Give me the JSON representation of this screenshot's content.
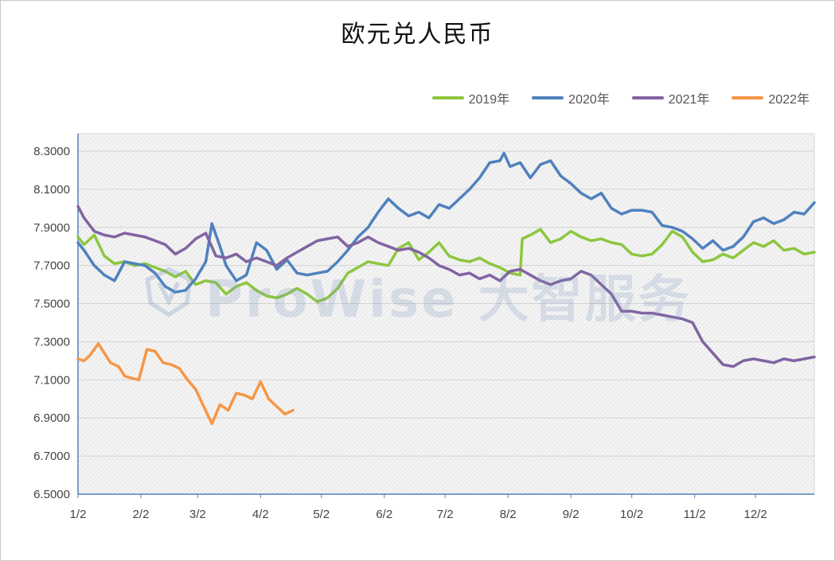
{
  "chart_data": {
    "type": "line",
    "title": "欧元兑人民币",
    "xlabel": "",
    "ylabel": "",
    "ylim": [
      6.5,
      8.3
    ],
    "yticks": [
      "8.3000",
      "8.1000",
      "7.9000",
      "7.7000",
      "7.5000",
      "7.3000",
      "7.1000",
      "6.9000",
      "6.7000",
      "6.5000"
    ],
    "xticks": [
      "1/2",
      "2/2",
      "3/2",
      "4/2",
      "5/2",
      "6/2",
      "7/2",
      "8/2",
      "9/2",
      "10/2",
      "11/2",
      "12/2"
    ],
    "legend_position": "top-right",
    "grid": true,
    "x_unit": "day-of-year",
    "series": [
      {
        "name": "2019年",
        "color": "#8dc63f",
        "x": [
          2,
          5,
          10,
          15,
          20,
          25,
          30,
          35,
          40,
          45,
          50,
          55,
          60,
          65,
          70,
          75,
          80,
          85,
          90,
          95,
          100,
          105,
          110,
          115,
          120,
          125,
          130,
          135,
          140,
          145,
          150,
          155,
          160,
          165,
          170,
          175,
          180,
          185,
          190,
          195,
          200,
          205,
          210,
          215,
          220,
          221,
          225,
          230,
          235,
          240,
          245,
          250,
          255,
          260,
          265,
          270,
          275,
          280,
          285,
          290,
          295,
          300,
          305,
          310,
          315,
          320,
          325,
          330,
          335,
          340,
          345,
          350,
          355,
          360,
          365
        ],
        "values": [
          7.85,
          7.81,
          7.86,
          7.75,
          7.71,
          7.72,
          7.7,
          7.71,
          7.69,
          7.67,
          7.64,
          7.67,
          7.6,
          7.62,
          7.61,
          7.55,
          7.59,
          7.61,
          7.57,
          7.54,
          7.53,
          7.55,
          7.58,
          7.55,
          7.51,
          7.53,
          7.58,
          7.66,
          7.69,
          7.72,
          7.71,
          7.7,
          7.79,
          7.82,
          7.73,
          7.77,
          7.82,
          7.75,
          7.73,
          7.72,
          7.74,
          7.71,
          7.69,
          7.66,
          7.65,
          7.84,
          7.86,
          7.89,
          7.82,
          7.84,
          7.88,
          7.85,
          7.83,
          7.84,
          7.82,
          7.81,
          7.76,
          7.75,
          7.76,
          7.81,
          7.88,
          7.85,
          7.77,
          7.72,
          7.73,
          7.76,
          7.74,
          7.78,
          7.82,
          7.8,
          7.83,
          7.78,
          7.79,
          7.76,
          7.77
        ]
      },
      {
        "name": "2020年",
        "color": "#4f81bd",
        "x": [
          2,
          5,
          10,
          15,
          20,
          25,
          30,
          35,
          40,
          45,
          50,
          55,
          60,
          65,
          68,
          72,
          75,
          80,
          85,
          90,
          95,
          100,
          105,
          110,
          115,
          120,
          125,
          130,
          135,
          140,
          145,
          150,
          155,
          160,
          165,
          170,
          175,
          180,
          185,
          190,
          195,
          200,
          205,
          210,
          212,
          215,
          220,
          225,
          230,
          235,
          240,
          245,
          250,
          255,
          260,
          265,
          270,
          275,
          280,
          285,
          290,
          295,
          300,
          305,
          310,
          315,
          320,
          325,
          330,
          335,
          340,
          345,
          350,
          355,
          360,
          365
        ],
        "values": [
          7.82,
          7.78,
          7.7,
          7.65,
          7.62,
          7.72,
          7.71,
          7.7,
          7.66,
          7.59,
          7.56,
          7.57,
          7.63,
          7.72,
          7.92,
          7.8,
          7.7,
          7.62,
          7.65,
          7.82,
          7.78,
          7.68,
          7.73,
          7.66,
          7.65,
          7.66,
          7.67,
          7.72,
          7.78,
          7.85,
          7.9,
          7.98,
          8.05,
          8.0,
          7.96,
          7.98,
          7.95,
          8.02,
          8.0,
          8.05,
          8.1,
          8.16,
          8.24,
          8.25,
          8.29,
          8.22,
          8.24,
          8.16,
          8.23,
          8.25,
          8.17,
          8.13,
          8.08,
          8.05,
          8.08,
          8.0,
          7.97,
          7.99,
          7.99,
          7.98,
          7.91,
          7.9,
          7.88,
          7.84,
          7.79,
          7.83,
          7.78,
          7.8,
          7.85,
          7.93,
          7.95,
          7.92,
          7.94,
          7.98,
          7.97,
          8.03
        ]
      },
      {
        "name": "2021年",
        "color": "#8064a2",
        "x": [
          2,
          5,
          10,
          15,
          20,
          25,
          30,
          35,
          40,
          45,
          50,
          55,
          60,
          65,
          70,
          75,
          80,
          85,
          90,
          95,
          100,
          105,
          110,
          115,
          120,
          125,
          130,
          135,
          140,
          145,
          150,
          155,
          160,
          165,
          170,
          175,
          180,
          185,
          190,
          195,
          200,
          205,
          210,
          215,
          220,
          225,
          230,
          235,
          240,
          245,
          250,
          255,
          260,
          265,
          270,
          275,
          280,
          285,
          290,
          295,
          300,
          305,
          310,
          315,
          320,
          325,
          330,
          335,
          340,
          345,
          350,
          355,
          360,
          365
        ],
        "values": [
          8.01,
          7.95,
          7.88,
          7.86,
          7.85,
          7.87,
          7.86,
          7.85,
          7.83,
          7.81,
          7.76,
          7.79,
          7.84,
          7.87,
          7.75,
          7.74,
          7.76,
          7.72,
          7.74,
          7.72,
          7.7,
          7.74,
          7.77,
          7.8,
          7.83,
          7.84,
          7.85,
          7.8,
          7.82,
          7.85,
          7.82,
          7.8,
          7.78,
          7.79,
          7.77,
          7.74,
          7.7,
          7.68,
          7.65,
          7.66,
          7.63,
          7.65,
          7.62,
          7.67,
          7.68,
          7.65,
          7.62,
          7.6,
          7.62,
          7.63,
          7.67,
          7.65,
          7.6,
          7.55,
          7.46,
          7.46,
          7.45,
          7.45,
          7.44,
          7.43,
          7.42,
          7.4,
          7.3,
          7.24,
          7.18,
          7.17,
          7.2,
          7.21,
          7.2,
          7.19,
          7.21,
          7.2,
          7.21,
          7.22
        ]
      },
      {
        "name": "2022年",
        "color": "#f79646",
        "x": [
          2,
          5,
          8,
          12,
          15,
          18,
          22,
          25,
          28,
          32,
          36,
          40,
          44,
          48,
          52,
          56,
          60,
          64,
          68,
          72,
          76,
          80,
          84,
          88,
          92,
          96,
          100,
          104,
          108
        ],
        "values": [
          7.21,
          7.2,
          7.23,
          7.29,
          7.24,
          7.19,
          7.17,
          7.12,
          7.11,
          7.1,
          7.26,
          7.25,
          7.19,
          7.18,
          7.16,
          7.1,
          7.05,
          6.96,
          6.87,
          6.97,
          6.94,
          7.03,
          7.02,
          7.0,
          7.09,
          7.0,
          6.96,
          6.92,
          6.94
        ]
      }
    ]
  }
}
